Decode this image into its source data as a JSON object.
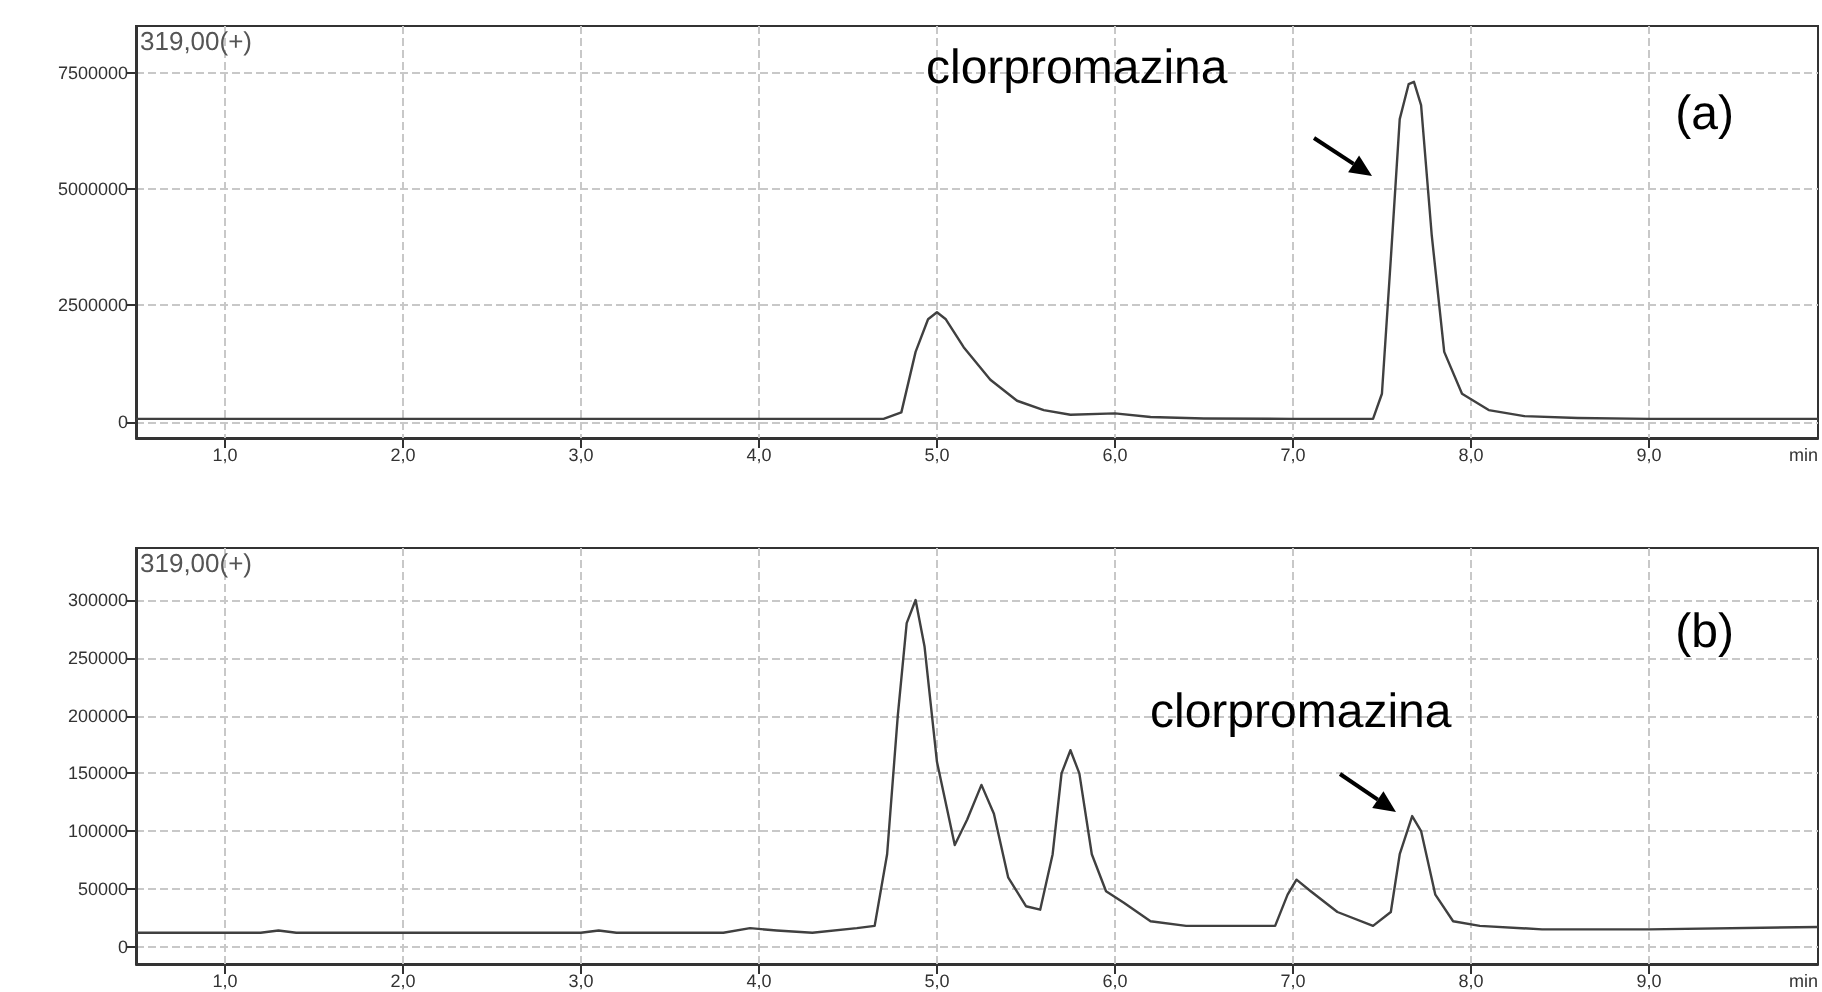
{
  "chart_data": [
    {
      "type": "line",
      "xlabel": "min",
      "annotations": [
        "319,00(+)",
        "clorpromazina",
        "(a)"
      ],
      "xlim": [
        0.5,
        9.95
      ],
      "xticks": [
        {
          "value": 1,
          "label": "1,0"
        },
        {
          "value": 2,
          "label": "2,0"
        },
        {
          "value": 3,
          "label": "3,0"
        },
        {
          "value": 4,
          "label": "4,0"
        },
        {
          "value": 5,
          "label": "5,0"
        },
        {
          "value": 6,
          "label": "6,0"
        },
        {
          "value": 7,
          "label": "7,0"
        },
        {
          "value": 8,
          "label": "8,0"
        },
        {
          "value": 9,
          "label": "9,0"
        }
      ],
      "ylim": [
        -350000,
        8500000
      ],
      "yticks": [
        0,
        2500000,
        5000000,
        7500000
      ],
      "grid": true,
      "marker": "none",
      "line_style": "solid",
      "series": [
        {
          "color": "#404040",
          "x": [
            0.5,
            2.0,
            4.0,
            4.7,
            4.8,
            4.88,
            4.95,
            5.0,
            5.05,
            5.15,
            5.3,
            5.45,
            5.6,
            5.75,
            6.0,
            6.2,
            6.5,
            7.0,
            7.45,
            7.5,
            7.55,
            7.6,
            7.65,
            7.68,
            7.72,
            7.78,
            7.85,
            7.95,
            8.1,
            8.3,
            8.6,
            9.0,
            9.95
          ],
          "values": [
            60000,
            60000,
            60000,
            60000,
            200000,
            1500000,
            2200000,
            2350000,
            2200000,
            1600000,
            900000,
            450000,
            250000,
            150000,
            180000,
            100000,
            70000,
            60000,
            60000,
            600000,
            3500000,
            6500000,
            7250000,
            7300000,
            6800000,
            4000000,
            1500000,
            600000,
            250000,
            120000,
            80000,
            60000,
            60000
          ]
        }
      ]
    },
    {
      "type": "line",
      "xlabel": "min",
      "annotations": [
        "319,00(+)",
        "clorpromazina",
        "(b)"
      ],
      "xlim": [
        0.5,
        9.95
      ],
      "xticks": [
        {
          "value": 1,
          "label": "1,0"
        },
        {
          "value": 2,
          "label": "2,0"
        },
        {
          "value": 3,
          "label": "3,0"
        },
        {
          "value": 4,
          "label": "4,0"
        },
        {
          "value": 5,
          "label": "5,0"
        },
        {
          "value": 6,
          "label": "6,0"
        },
        {
          "value": 7,
          "label": "7,0"
        },
        {
          "value": 8,
          "label": "8,0"
        },
        {
          "value": 9,
          "label": "9,0"
        }
      ],
      "ylim": [
        -15000,
        345000
      ],
      "yticks": [
        0,
        50000,
        100000,
        150000,
        200000,
        250000,
        300000
      ],
      "grid": true,
      "marker": "none",
      "line_style": "solid",
      "series": [
        {
          "color": "#404040",
          "x": [
            0.5,
            1.2,
            1.3,
            1.4,
            2.5,
            3.0,
            3.1,
            3.2,
            3.8,
            3.95,
            4.1,
            4.3,
            4.55,
            4.65,
            4.72,
            4.78,
            4.83,
            4.88,
            4.93,
            5.0,
            5.1,
            5.17,
            5.25,
            5.32,
            5.4,
            5.5,
            5.58,
            5.65,
            5.7,
            5.75,
            5.8,
            5.87,
            5.95,
            6.05,
            6.2,
            6.4,
            6.7,
            6.9,
            6.97,
            7.02,
            7.1,
            7.25,
            7.45,
            7.55,
            7.6,
            7.67,
            7.72,
            7.8,
            7.9,
            8.05,
            8.4,
            9.0,
            9.95
          ],
          "values": [
            12000,
            12000,
            14000,
            12000,
            12000,
            12000,
            14000,
            12000,
            12000,
            16000,
            14000,
            12000,
            16000,
            18000,
            80000,
            200000,
            280000,
            300000,
            260000,
            160000,
            88000,
            110000,
            140000,
            115000,
            60000,
            35000,
            32000,
            80000,
            150000,
            170000,
            150000,
            80000,
            48000,
            38000,
            22000,
            18000,
            18000,
            18000,
            45000,
            58000,
            48000,
            30000,
            18000,
            30000,
            80000,
            113000,
            100000,
            45000,
            22000,
            18000,
            15000,
            15000,
            17000
          ]
        }
      ]
    }
  ]
}
